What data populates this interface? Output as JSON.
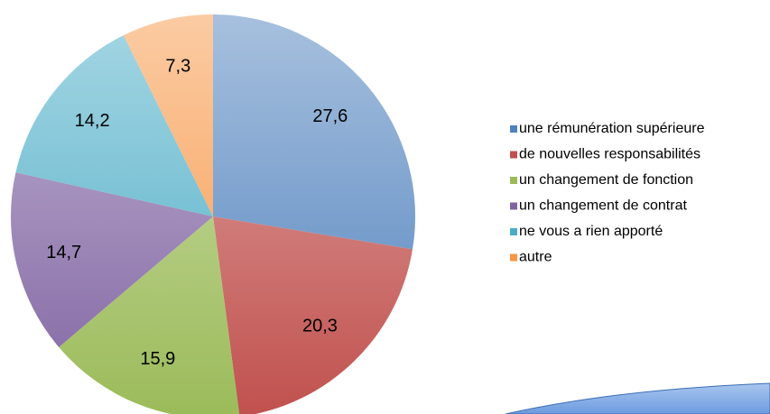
{
  "chart_data": {
    "type": "pie",
    "categories": [
      "une rémunération supérieure",
      "de nouvelles responsabilités",
      "un changement de fonction",
      "un changement de contrat",
      "ne vous a rien apporté",
      "autre"
    ],
    "values": [
      27.6,
      20.3,
      15.9,
      14.7,
      14.2,
      7.3
    ],
    "value_labels": [
      "27,6",
      "20,3",
      "15,9",
      "14,7",
      "14,2",
      "7,3"
    ],
    "colors": [
      "#4f81bd",
      "#c0504d",
      "#9bbb59",
      "#8064a2",
      "#4bacc6",
      "#f79646"
    ],
    "legend": "right"
  }
}
